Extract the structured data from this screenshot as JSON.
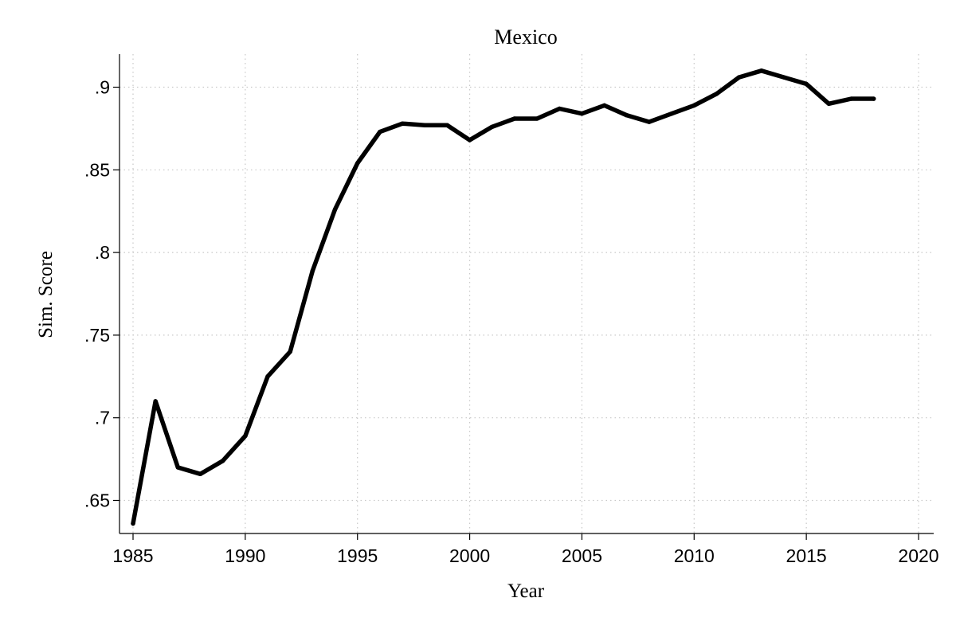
{
  "chart_data": {
    "type": "line",
    "title": "Mexico",
    "xlabel": "Year",
    "ylabel": "Sim. Score",
    "xlim": [
      1985,
      2020
    ],
    "ylim": [
      0.63,
      0.92
    ],
    "xticks": [
      1985,
      1990,
      1995,
      2000,
      2005,
      2010,
      2015,
      2020
    ],
    "xtick_labels": [
      "1985",
      "1990",
      "1995",
      "2000",
      "2005",
      "2010",
      "2015",
      "2020"
    ],
    "yticks": [
      0.65,
      0.7,
      0.75,
      0.8,
      0.85,
      0.9
    ],
    "ytick_labels": [
      ".65",
      ".7",
      ".75",
      ".8",
      ".85",
      ".9"
    ],
    "grid": true,
    "series_color": "#000000",
    "x": [
      1985,
      1986,
      1987,
      1988,
      1989,
      1990,
      1991,
      1992,
      1993,
      1994,
      1995,
      1996,
      1997,
      1998,
      1999,
      2000,
      2001,
      2002,
      2003,
      2004,
      2005,
      2006,
      2007,
      2008,
      2009,
      2010,
      2011,
      2012,
      2013,
      2014,
      2015,
      2016,
      2017,
      2018
    ],
    "values": [
      0.636,
      0.71,
      0.67,
      0.666,
      0.674,
      0.689,
      0.725,
      0.74,
      0.789,
      0.826,
      0.854,
      0.873,
      0.878,
      0.877,
      0.877,
      0.868,
      0.876,
      0.881,
      0.881,
      0.887,
      0.884,
      0.889,
      0.883,
      0.879,
      0.884,
      0.889,
      0.896,
      0.906,
      0.91,
      0.906,
      0.902,
      0.89,
      0.893,
      0.893
    ]
  }
}
